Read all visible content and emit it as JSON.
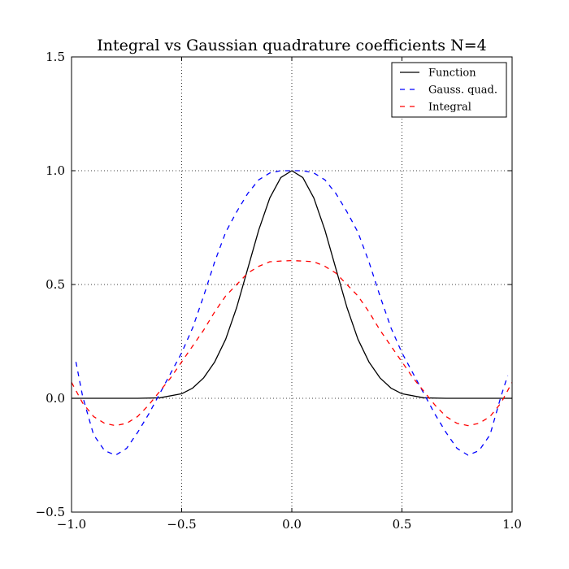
{
  "chart_data": {
    "type": "line",
    "title": "Integral vs Gaussian quadrature coefficients N=4",
    "xlabel": "",
    "ylabel": "",
    "xlim": [
      -1.0,
      1.0
    ],
    "ylim": [
      -0.5,
      1.5
    ],
    "x_ticks": [
      -1.0,
      -0.5,
      0.0,
      0.5,
      1.0
    ],
    "x_tick_labels": [
      "−1.0",
      "−0.5",
      "0.0",
      "0.5",
      "1.0"
    ],
    "y_ticks": [
      -0.5,
      0.0,
      0.5,
      1.0,
      1.5
    ],
    "y_tick_labels": [
      "−0.5",
      "0.0",
      "0.5",
      "1.0",
      "1.5"
    ],
    "grid": true,
    "legend_position": "top-right",
    "series": [
      {
        "name": "Function",
        "color": "#000000",
        "style": "solid",
        "x": [
          -1.0,
          -0.9,
          -0.8,
          -0.7,
          -0.6,
          -0.5,
          -0.45,
          -0.4,
          -0.35,
          -0.3,
          -0.25,
          -0.2,
          -0.15,
          -0.1,
          -0.05,
          0.0,
          0.05,
          0.1,
          0.15,
          0.2,
          0.25,
          0.3,
          0.35,
          0.4,
          0.45,
          0.5,
          0.6,
          0.7,
          0.8,
          0.9,
          1.0
        ],
        "y": [
          0.0,
          0.0,
          0.0,
          0.0,
          0.002,
          0.02,
          0.045,
          0.09,
          0.16,
          0.26,
          0.4,
          0.57,
          0.74,
          0.88,
          0.97,
          1.0,
          0.97,
          0.88,
          0.74,
          0.57,
          0.4,
          0.26,
          0.16,
          0.09,
          0.045,
          0.02,
          0.002,
          0.0,
          0.0,
          0.0,
          0.0
        ]
      },
      {
        "name": "Gauss. quad.",
        "color": "#0000ff",
        "style": "dashed",
        "x": [
          -0.98,
          -0.95,
          -0.9,
          -0.85,
          -0.8,
          -0.75,
          -0.7,
          -0.65,
          -0.6,
          -0.55,
          -0.5,
          -0.45,
          -0.4,
          -0.35,
          -0.3,
          -0.25,
          -0.2,
          -0.15,
          -0.1,
          -0.05,
          0.0,
          0.05,
          0.1,
          0.15,
          0.2,
          0.25,
          0.3,
          0.35,
          0.4,
          0.45,
          0.5,
          0.55,
          0.6,
          0.65,
          0.7,
          0.75,
          0.8,
          0.85,
          0.9,
          0.95,
          0.98
        ],
        "y": [
          0.16,
          0.01,
          -0.16,
          -0.23,
          -0.25,
          -0.22,
          -0.15,
          -0.07,
          0.02,
          0.11,
          0.2,
          0.31,
          0.45,
          0.6,
          0.73,
          0.82,
          0.9,
          0.96,
          0.99,
          1.0,
          1.0,
          1.0,
          0.99,
          0.96,
          0.9,
          0.82,
          0.73,
          0.6,
          0.45,
          0.31,
          0.2,
          0.11,
          0.02,
          -0.07,
          -0.15,
          -0.22,
          -0.25,
          -0.23,
          -0.16,
          0.01,
          0.1
        ]
      },
      {
        "name": "Integral",
        "color": "#ff0000",
        "style": "dashed",
        "x": [
          -1.0,
          -0.95,
          -0.9,
          -0.85,
          -0.8,
          -0.75,
          -0.7,
          -0.65,
          -0.6,
          -0.55,
          -0.5,
          -0.45,
          -0.4,
          -0.35,
          -0.3,
          -0.25,
          -0.2,
          -0.15,
          -0.1,
          -0.05,
          0.0,
          0.05,
          0.1,
          0.15,
          0.2,
          0.25,
          0.3,
          0.35,
          0.4,
          0.45,
          0.5,
          0.55,
          0.6,
          0.65,
          0.7,
          0.75,
          0.8,
          0.85,
          0.9,
          0.95,
          1.0
        ],
        "y": [
          0.07,
          -0.02,
          -0.08,
          -0.11,
          -0.12,
          -0.11,
          -0.08,
          -0.03,
          0.03,
          0.09,
          0.16,
          0.23,
          0.3,
          0.38,
          0.45,
          0.5,
          0.55,
          0.58,
          0.6,
          0.603,
          0.605,
          0.603,
          0.6,
          0.58,
          0.55,
          0.5,
          0.45,
          0.38,
          0.3,
          0.23,
          0.16,
          0.09,
          0.03,
          -0.03,
          -0.08,
          -0.11,
          -0.12,
          -0.11,
          -0.08,
          -0.02,
          0.07
        ]
      }
    ]
  }
}
